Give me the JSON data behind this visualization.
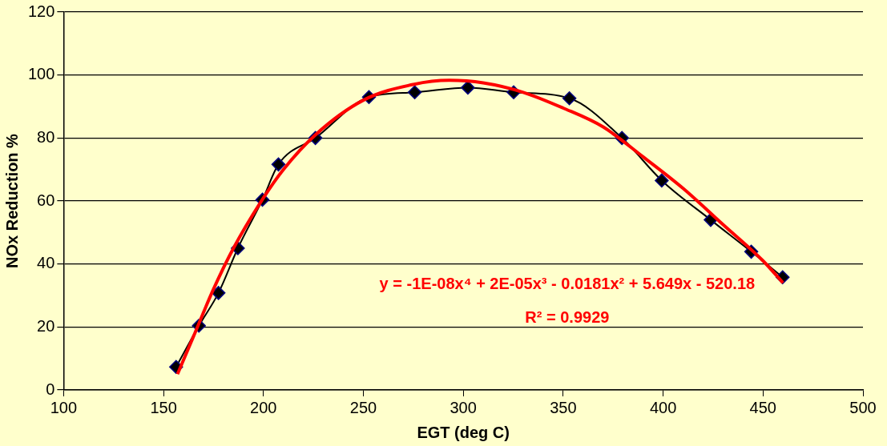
{
  "chart_data": {
    "type": "line",
    "xlabel": "EGT (deg C)",
    "ylabel": "NOx Reduction %",
    "xlim": [
      100,
      500
    ],
    "xticks": [
      100,
      150,
      200,
      250,
      300,
      350,
      400,
      450,
      500
    ],
    "ylim": [
      0,
      120
    ],
    "yticks": [
      0,
      20,
      40,
      60,
      80,
      100,
      120
    ],
    "grid": "y",
    "legend": false,
    "series": [
      {
        "color": "#000000",
        "marker": "diamond",
        "x": [
          156.3,
          167.7,
          177.5,
          187.2,
          199.5,
          207.5,
          226,
          252.8,
          275.7,
          302.3,
          325.2,
          353.1,
          379.4,
          399.3,
          423.8,
          444.1,
          459.8
        ],
        "values": [
          7.3,
          20.4,
          30.8,
          45,
          60.4,
          71.6,
          80,
          93,
          94.5,
          96,
          94.5,
          92.6,
          80,
          66.5,
          54,
          43.9,
          35.8
        ]
      },
      {
        "color": "#ff0000",
        "marker": "none",
        "x": [
          157,
          165,
          175,
          185,
          200,
          210,
          226,
          250,
          275,
          293,
          310,
          330,
          350,
          370,
          390,
          410,
          430,
          450,
          460
        ],
        "values": [
          5,
          17,
          32,
          45,
          61,
          70,
          81,
          92,
          97,
          98.3,
          97.5,
          94.5,
          89.5,
          83.5,
          74,
          64,
          52.5,
          41,
          34
        ]
      }
    ],
    "annotations": [
      "y = -1E-08x⁴ + 2E-05x³ - 0.0181x² + 5.649x - 520.18",
      "R² = 0.9929"
    ]
  }
}
